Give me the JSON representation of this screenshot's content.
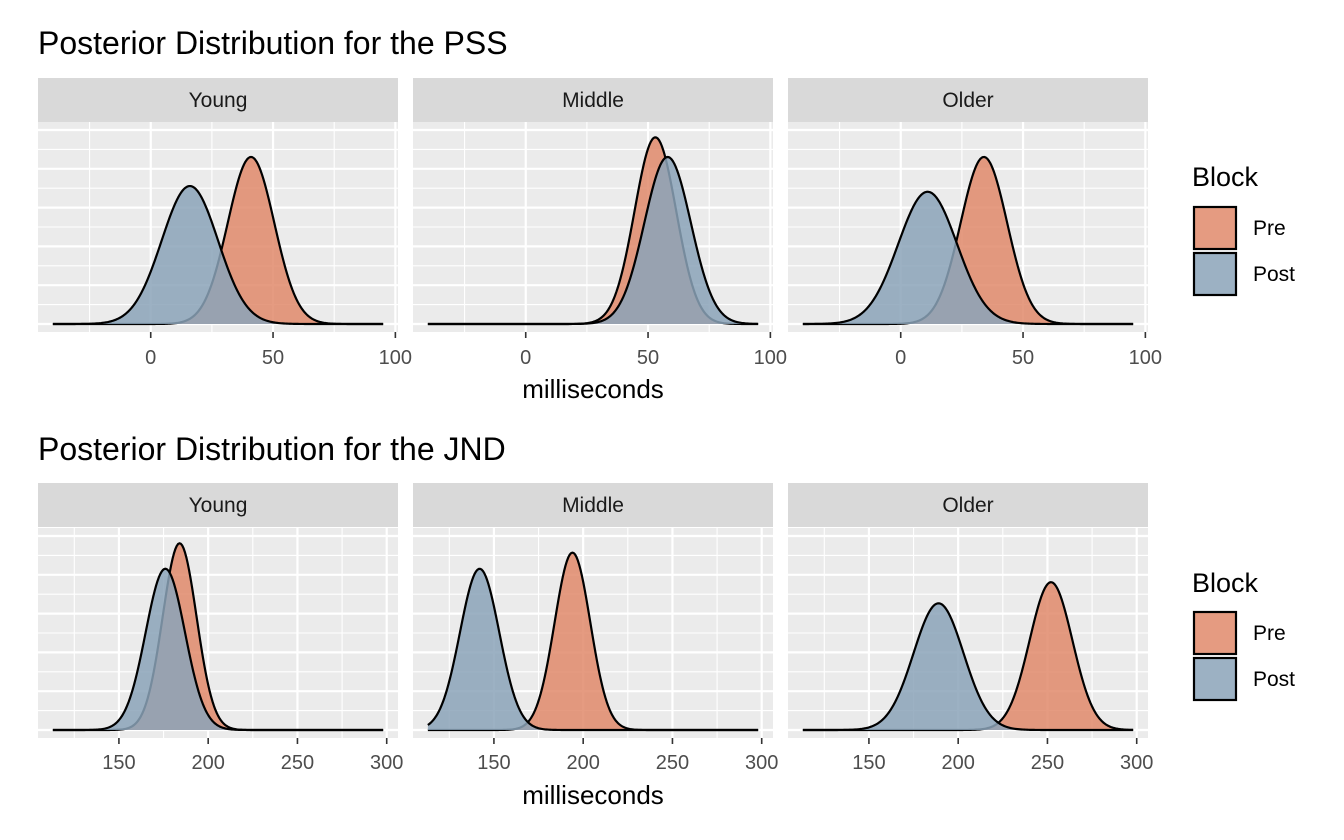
{
  "colors": {
    "pre": "#E08A6B",
    "post": "#8BA3B8",
    "panel_bg": "#EBEBEB",
    "strip_bg": "#D9D9D9"
  },
  "chart_data": [
    {
      "type": "density",
      "title": "Posterior Distribution for the PSS",
      "xlabel": "milliseconds",
      "ylabel": "",
      "xlim": [
        -40,
        95
      ],
      "xticks": [
        0,
        50,
        100
      ],
      "grid": true,
      "facets": [
        "Young",
        "Middle",
        "Older"
      ],
      "legend": {
        "title": "Block",
        "entries": [
          "Pre",
          "Post"
        ],
        "position": "right"
      },
      "panels": [
        {
          "facet": "Young",
          "series": [
            {
              "name": "Pre",
              "components": [
                {
                  "mean": 41,
                  "sd": 9.5,
                  "weight": 1
                }
              ]
            },
            {
              "name": "Post",
              "components": [
                {
                  "mean": 16,
                  "sd": 11.5,
                  "weight": 1
                }
              ]
            }
          ]
        },
        {
          "facet": "Middle",
          "series": [
            {
              "name": "Pre",
              "components": [
                {
                  "mean": 53,
                  "sd": 8.5,
                  "weight": 1
                }
              ]
            },
            {
              "name": "Post",
              "components": [
                {
                  "mean": 58,
                  "sd": 9.5,
                  "weight": 1
                }
              ]
            }
          ]
        },
        {
          "facet": "Older",
          "series": [
            {
              "name": "Pre",
              "components": [
                {
                  "mean": 34,
                  "sd": 9.5,
                  "weight": 1
                }
              ]
            },
            {
              "name": "Post",
              "components": [
                {
                  "mean": 11,
                  "sd": 12,
                  "weight": 1
                }
              ]
            }
          ]
        }
      ]
    },
    {
      "type": "density",
      "title": "Posterior Distribution for the JND",
      "xlabel": "milliseconds",
      "ylabel": "",
      "xlim": [
        113,
        298
      ],
      "xticks": [
        150,
        200,
        250,
        300
      ],
      "grid": true,
      "facets": [
        "Young",
        "Middle",
        "Older"
      ],
      "legend": {
        "title": "Block",
        "entries": [
          "Pre",
          "Post"
        ],
        "position": "right"
      },
      "panels": [
        {
          "facet": "Young",
          "series": [
            {
              "name": "Pre",
              "components": [
                {
                  "mean": 184,
                  "sd": 9.5,
                  "weight": 1
                }
              ]
            },
            {
              "name": "Post",
              "components": [
                {
                  "mean": 176,
                  "sd": 11,
                  "weight": 1
                }
              ]
            }
          ]
        },
        {
          "facet": "Middle",
          "series": [
            {
              "name": "Pre",
              "components": [
                {
                  "mean": 194,
                  "sd": 10,
                  "weight": 1
                }
              ]
            },
            {
              "name": "Post",
              "components": [
                {
                  "mean": 142,
                  "sd": 11,
                  "weight": 1
                }
              ]
            }
          ]
        },
        {
          "facet": "Older",
          "series": [
            {
              "name": "Pre",
              "components": [
                {
                  "mean": 252,
                  "sd": 12,
                  "weight": 1
                }
              ]
            },
            {
              "name": "Post",
              "components": [
                {
                  "mean": 189,
                  "sd": 14,
                  "weight": 1
                }
              ]
            }
          ]
        }
      ]
    }
  ]
}
